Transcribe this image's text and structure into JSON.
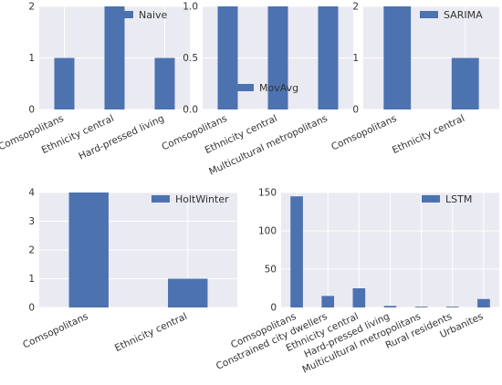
{
  "colors": {
    "bar": "#4c72b0",
    "axes_bg": "#eaeaf2",
    "grid": "#ffffff",
    "text": "#333333"
  },
  "chart_data": [
    {
      "type": "bar",
      "categories": [
        "Comsopolitans",
        "Ethnicity central",
        "Hard-pressed living"
      ],
      "series": [
        {
          "name": "Naive",
          "values": [
            1,
            2,
            1
          ]
        }
      ],
      "ylim": [
        0,
        2
      ],
      "yticks": [
        "0",
        "1",
        "2"
      ],
      "grid": true,
      "legend_position": "top-right"
    },
    {
      "type": "bar",
      "categories": [
        "Comsopolitans",
        "Ethnicity central",
        "Multicultural metropolitans"
      ],
      "series": [
        {
          "name": "MovAvg",
          "values": [
            1,
            1,
            1
          ]
        }
      ],
      "ylim": [
        0,
        1
      ],
      "yticks": [
        "0.0",
        "0.5",
        "1.0"
      ],
      "grid": true,
      "legend_position": "bottom-center"
    },
    {
      "type": "bar",
      "categories": [
        "Comsopolitans",
        "Ethnicity central"
      ],
      "series": [
        {
          "name": "SARIMA",
          "values": [
            2,
            1
          ]
        }
      ],
      "ylim": [
        0,
        2
      ],
      "yticks": [
        "0",
        "1",
        "2"
      ],
      "grid": true,
      "legend_position": "top-right"
    },
    {
      "type": "bar",
      "categories": [
        "Comsopolitans",
        "Ethnicity central"
      ],
      "series": [
        {
          "name": "HoltWinter",
          "values": [
            4,
            1
          ]
        }
      ],
      "ylim": [
        0,
        4
      ],
      "yticks": [
        "0",
        "1",
        "2",
        "3",
        "4"
      ],
      "grid": true,
      "legend_position": "top-right"
    },
    {
      "type": "bar",
      "categories": [
        "Comsopolitans",
        "Constrained city dwellers",
        "Ethnicity central",
        "Hard-pressed living",
        "Multicultural metropolitans",
        "Rural residents",
        "Urbanites"
      ],
      "series": [
        {
          "name": "LSTM",
          "values": [
            145,
            15,
            25,
            2,
            1,
            1,
            11
          ]
        }
      ],
      "ylim": [
        0,
        150
      ],
      "yticks": [
        "0",
        "50",
        "100",
        "150"
      ],
      "grid": true,
      "legend_position": "top-right"
    }
  ]
}
